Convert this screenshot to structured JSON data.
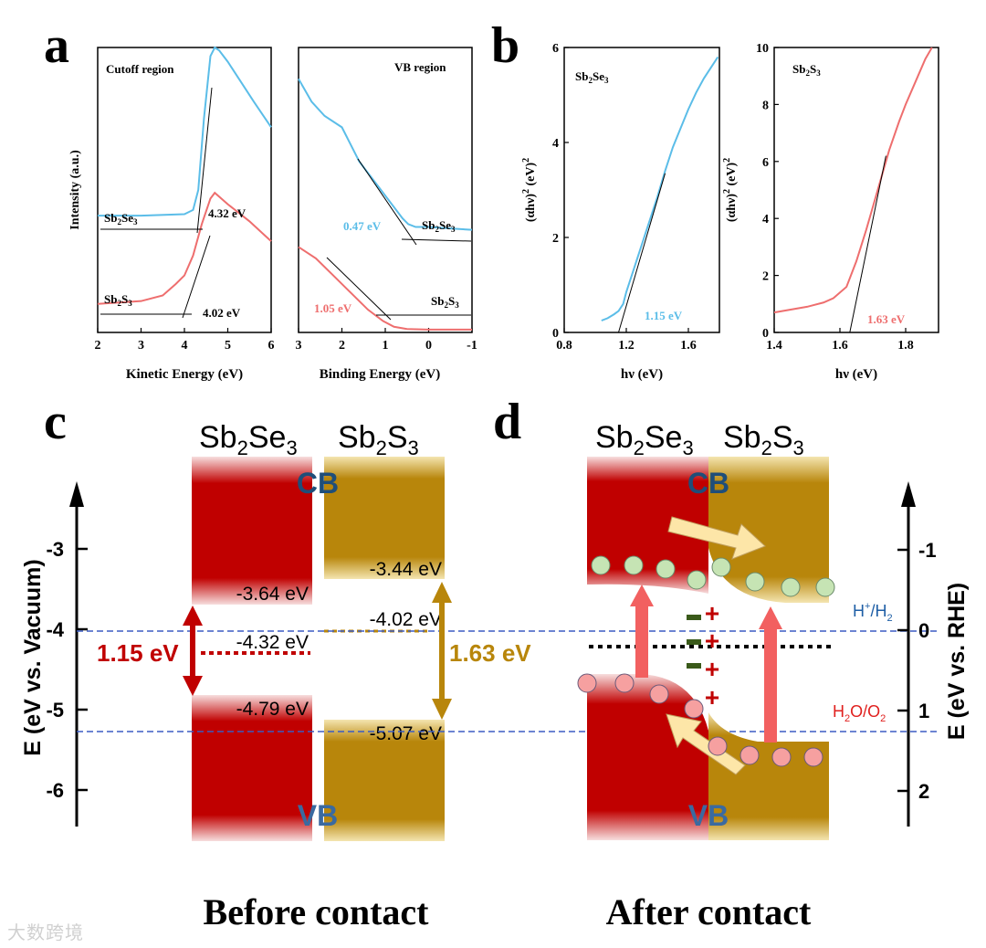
{
  "panel_letters": {
    "a": "a",
    "b": "b",
    "c": "c",
    "d": "d"
  },
  "colors": {
    "blue": "#5bbde8",
    "red": "#ee6e6e",
    "darkred": "#c00000",
    "gold": "#b8860b",
    "navy": "#1f4e79",
    "vb_text": "#3a6aa0",
    "h_label": "#1f5fa6",
    "o_label": "#e0201e"
  },
  "chart_data": [
    {
      "id": "a-left",
      "type": "line",
      "title": "Cutoff region",
      "xlabel": "Kinetic Energy (eV)",
      "ylabel": "Intensity (a.u.)",
      "xlim": [
        2,
        6
      ],
      "ylim": [
        0,
        1
      ],
      "xticks": [
        "2",
        "3",
        "4",
        "5",
        "6"
      ],
      "series": [
        {
          "name": "Sb2Se3",
          "label_main": "Sb",
          "label_sub1": "2",
          "label_mid": "Se",
          "label_sub2": "3",
          "color": "blue",
          "x": [
            2,
            3,
            4,
            4.2,
            4.32,
            4.45,
            4.6,
            4.7,
            4.8,
            5.0,
            5.3,
            5.6,
            6.0
          ],
          "y": [
            0.41,
            0.41,
            0.415,
            0.43,
            0.5,
            0.75,
            0.97,
            1.0,
            0.99,
            0.95,
            0.88,
            0.81,
            0.72
          ]
        },
        {
          "name": "Sb2S3",
          "label_main": "Sb",
          "label_sub1": "2",
          "label_mid": "S",
          "label_sub2": "3",
          "color": "red",
          "x": [
            2,
            3,
            3.5,
            3.8,
            4.0,
            4.2,
            4.4,
            4.6,
            4.7,
            5.0,
            5.5,
            6.0
          ],
          "y": [
            0.1,
            0.11,
            0.13,
            0.17,
            0.2,
            0.27,
            0.38,
            0.47,
            0.49,
            0.45,
            0.39,
            0.32
          ]
        }
      ],
      "annotations": [
        {
          "text": "4.32 eV",
          "x": 4.32
        },
        {
          "text": "4.02 eV",
          "x": 4.02
        }
      ]
    },
    {
      "id": "a-right",
      "type": "line",
      "title": "VB region",
      "xlabel": "Binding Energy (eV)",
      "ylabel": "",
      "xlim": [
        3,
        -1
      ],
      "ylim": [
        0,
        1
      ],
      "xticks": [
        "3",
        "2",
        "1",
        "0",
        "-1"
      ],
      "series": [
        {
          "name": "Sb2Se3",
          "color": "blue",
          "x": [
            3,
            2.7,
            2.4,
            2.0,
            1.6,
            1.2,
            0.8,
            0.6,
            0.47,
            0.3,
            0,
            -0.5,
            -1
          ],
          "y": [
            0.89,
            0.81,
            0.76,
            0.72,
            0.6,
            0.52,
            0.44,
            0.4,
            0.38,
            0.37,
            0.37,
            0.365,
            0.36
          ]
        },
        {
          "name": "Sb2S3",
          "color": "red",
          "x": [
            3,
            2.6,
            2.2,
            1.8,
            1.4,
            1.05,
            0.8,
            0.5,
            0,
            -0.5,
            -1
          ],
          "y": [
            0.3,
            0.26,
            0.2,
            0.14,
            0.08,
            0.04,
            0.02,
            0.012,
            0.01,
            0.01,
            0.01
          ]
        }
      ],
      "labels": [
        {
          "text": "0.47 eV",
          "color": "blue"
        },
        {
          "text": "1.05 eV",
          "color": "red"
        }
      ]
    },
    {
      "id": "b-left",
      "type": "line",
      "title": "Sb2Se3",
      "xlabel": "hν (eV)",
      "ylabel": "(αhν)² (eV)²",
      "xlim": [
        0.8,
        1.8
      ],
      "ylim": [
        0,
        6
      ],
      "xticks": [
        "0.8",
        "1.2",
        "1.6"
      ],
      "yticks": [
        "0",
        "2",
        "4",
        "6"
      ],
      "series": [
        {
          "name": "Sb2Se3",
          "color": "blue",
          "x": [
            1.04,
            1.08,
            1.12,
            1.15,
            1.18,
            1.2,
            1.25,
            1.3,
            1.35,
            1.4,
            1.45,
            1.5,
            1.55,
            1.6,
            1.65,
            1.7,
            1.75,
            1.79
          ],
          "y": [
            0.25,
            0.3,
            0.38,
            0.45,
            0.6,
            0.85,
            1.35,
            1.85,
            2.35,
            2.85,
            3.4,
            3.9,
            4.3,
            4.7,
            5.05,
            5.35,
            5.6,
            5.8
          ]
        }
      ],
      "annotation": "1.15 eV",
      "bandgap": 1.15
    },
    {
      "id": "b-right",
      "type": "line",
      "title": "Sb2S3",
      "xlabel": "hν (eV)",
      "ylabel": "(αhν)² (eV)²",
      "xlim": [
        1.4,
        1.9
      ],
      "ylim": [
        0,
        10
      ],
      "xticks": [
        "1.4",
        "1.6",
        "1.8"
      ],
      "yticks": [
        "0",
        "2",
        "4",
        "6",
        "8",
        "10"
      ],
      "series": [
        {
          "name": "Sb2S3",
          "color": "red",
          "x": [
            1.4,
            1.45,
            1.5,
            1.55,
            1.58,
            1.62,
            1.65,
            1.68,
            1.7,
            1.72,
            1.75,
            1.78,
            1.8,
            1.83,
            1.86,
            1.88
          ],
          "y": [
            0.7,
            0.8,
            0.9,
            1.05,
            1.2,
            1.6,
            2.5,
            3.6,
            4.4,
            5.2,
            6.4,
            7.4,
            8.0,
            8.8,
            9.6,
            10.0
          ]
        }
      ],
      "annotation": "1.63 eV",
      "bandgap": 1.63
    }
  ],
  "panel_c": {
    "title": "Before contact",
    "material1": {
      "main": "Sb",
      "sub1": "2",
      "mid": "Se",
      "sub2": "3"
    },
    "material2": {
      "main": "Sb",
      "sub1": "2",
      "mid": "S",
      "sub2": "3"
    },
    "cb": "CB",
    "vb": "VB",
    "axis_label": "E (eV vs. Vacuum)",
    "yticks": [
      "-3",
      "-4",
      "-5",
      "-6"
    ],
    "values": {
      "se_cb": "-3.64 eV",
      "se_fermi": "-4.32 eV",
      "se_vb": "-4.79 eV",
      "s_cb": "-3.44 eV",
      "s_fermi": "-4.02 eV",
      "s_vb": "-5.07 eV"
    },
    "gaps": {
      "se": "1.15 eV",
      "s": "1.63 eV"
    }
  },
  "panel_d": {
    "title": "After contact",
    "cb": "CB",
    "vb": "VB",
    "axis_label": "E (eV vs. RHE)",
    "yticks": [
      "-1",
      "0",
      "1",
      "2"
    ],
    "h_label": {
      "main": "H",
      "sup": "+",
      "mid": "/H",
      "sub": "2"
    },
    "o_label": {
      "main": "H",
      "sub1": "2",
      "mid": "O/O",
      "sub2": "2"
    }
  },
  "watermark": "大数跨境"
}
